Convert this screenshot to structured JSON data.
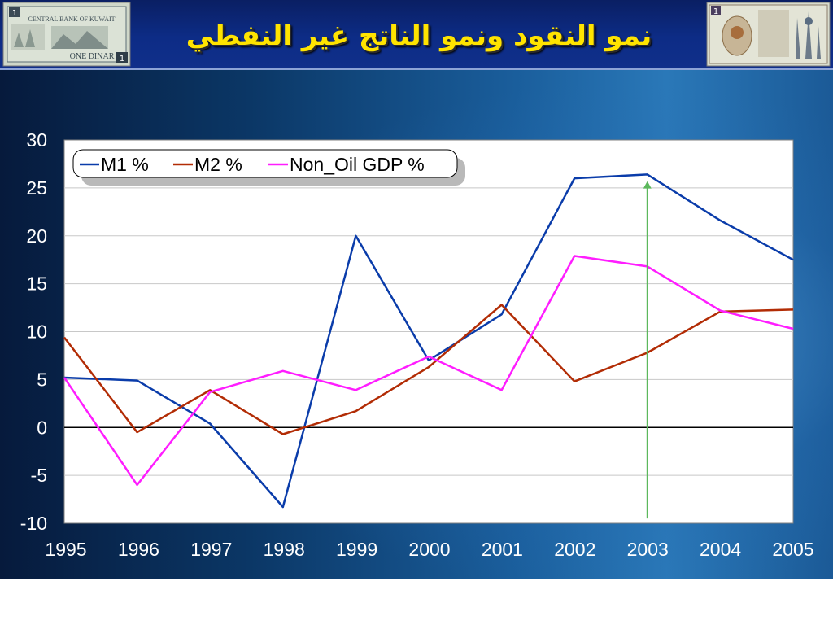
{
  "slide": {
    "title": "نمو النقود ونمو الناتج غير النفطي"
  },
  "banknotes": {
    "left": {
      "denomination": "1",
      "bank_name": "CENTRAL BANK OF KUWAIT",
      "currency": "ONE DINAR"
    },
    "right": {
      "denomination": "1"
    }
  },
  "colors": {
    "header_bg": "#0d2c86",
    "title": "#ffe400",
    "m1": "#0a3caa",
    "m2": "#b22c05",
    "non_oil_gdp": "#ff1dff",
    "highlight_arrow": "#5cb85c",
    "axis_labels": "#ffffff"
  },
  "chart_data": {
    "type": "line",
    "x": [
      1995,
      1996,
      1997,
      1998,
      1999,
      2000,
      2001,
      2002,
      2003,
      2004,
      2005
    ],
    "series": [
      {
        "name": "M1 %",
        "color": "#0a3caa",
        "values": [
          5.2,
          4.9,
          0.4,
          -8.3,
          20.0,
          7.0,
          11.8,
          26.0,
          26.4,
          21.6,
          17.5
        ]
      },
      {
        "name": "M2 %",
        "color": "#b22c05",
        "values": [
          9.4,
          -0.5,
          3.9,
          -0.7,
          1.7,
          6.3,
          12.8,
          4.8,
          7.8,
          12.1,
          12.3
        ]
      },
      {
        "name": "Non_Oil GDP %",
        "color": "#ff1dff",
        "values": [
          5.2,
          -6.0,
          3.7,
          5.9,
          3.9,
          7.4,
          3.9,
          17.9,
          16.8,
          12.2,
          10.3
        ]
      }
    ],
    "xlabel": "",
    "ylabel": "",
    "ylim": [
      -10,
      30
    ],
    "y_ticks": [
      30,
      25,
      20,
      15,
      10,
      5,
      0,
      -5,
      -10
    ],
    "x_tick_labels": [
      "1995",
      "1996",
      "1997",
      "1998",
      "1999",
      "2000",
      "2001",
      "2002",
      "2003",
      "2004",
      "2005"
    ],
    "grid": true,
    "legend_position": "top-left",
    "annotations": [
      {
        "type": "vertical-arrow",
        "x": 2003,
        "from_y": -9.5,
        "to_y": 25.7,
        "color": "#5cb85c"
      }
    ]
  }
}
